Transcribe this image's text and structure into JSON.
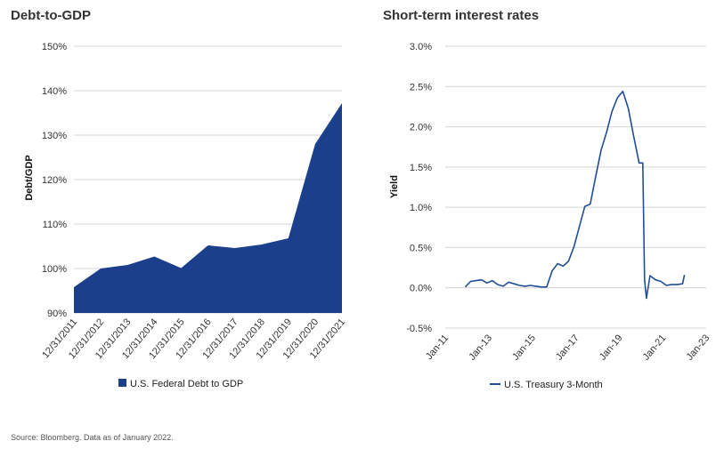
{
  "source_note": "Source: Bloomberg.  Data as of January 2022.",
  "colors": {
    "area": "#1b3f8a",
    "line": "#1f4e96",
    "grid": "#d4d4d4"
  },
  "chart_data": [
    {
      "id": "debt",
      "type": "area",
      "title": "Debt-to-GDP",
      "ylabel": "Debt/GDP",
      "xlabel": "",
      "categories": [
        "12/31/2011",
        "12/31/2012",
        "12/31/2013",
        "12/31/2014",
        "12/31/2015",
        "12/31/2016",
        "12/31/2017",
        "12/31/2018",
        "12/31/2019",
        "12/31/2020",
        "12/31/2021"
      ],
      "series": [
        {
          "name": "U.S. Federal Debt to GDP",
          "values": [
            95.8,
            100.0,
            100.8,
            102.7,
            100.1,
            105.2,
            104.6,
            105.4,
            106.8,
            128.0,
            137.2
          ]
        }
      ],
      "ylim": [
        90,
        150
      ],
      "yticks": [
        90,
        100,
        110,
        120,
        130,
        140,
        150
      ],
      "ytick_labels": [
        "90%",
        "100%",
        "110%",
        "120%",
        "130%",
        "140%",
        "150%"
      ],
      "grid": true,
      "legend": "bottom"
    },
    {
      "id": "rates",
      "type": "line",
      "title": "Short-term interest rates",
      "ylabel": "Yield",
      "xlabel": "",
      "x_tick_labels": [
        "Jan-11",
        "Jan-13",
        "Jan-15",
        "Jan-17",
        "Jan-19",
        "Jan-21",
        "Jan-23"
      ],
      "ylim": [
        -0.5,
        3.0
      ],
      "yticks": [
        -0.5,
        0.0,
        0.5,
        1.0,
        1.5,
        2.0,
        2.5,
        3.0
      ],
      "ytick_labels": [
        "-0.5%",
        "0.0%",
        "0.5%",
        "1.0%",
        "1.5%",
        "2.0%",
        "2.5%",
        "3.0%"
      ],
      "grid": true,
      "legend": "bottom",
      "series": [
        {
          "name": "U.S. Treasury 3-Month",
          "x": [
            "2011-12",
            "2012-03",
            "2012-06",
            "2012-09",
            "2012-12",
            "2013-03",
            "2013-06",
            "2013-09",
            "2013-12",
            "2014-03",
            "2014-06",
            "2014-09",
            "2014-12",
            "2015-03",
            "2015-06",
            "2015-09",
            "2015-12",
            "2016-03",
            "2016-06",
            "2016-09",
            "2016-12",
            "2017-03",
            "2017-06",
            "2017-09",
            "2017-12",
            "2018-03",
            "2018-06",
            "2018-09",
            "2018-12",
            "2019-03",
            "2019-06",
            "2019-09",
            "2019-12",
            "2020-02",
            "2020-03",
            "2020-04",
            "2020-06",
            "2020-09",
            "2020-12",
            "2021-03",
            "2021-06",
            "2021-09",
            "2021-12",
            "2022-01"
          ],
          "values": [
            0.01,
            0.08,
            0.09,
            0.1,
            0.06,
            0.09,
            0.04,
            0.02,
            0.07,
            0.05,
            0.03,
            0.02,
            0.03,
            0.02,
            0.01,
            0.01,
            0.21,
            0.3,
            0.27,
            0.33,
            0.51,
            0.76,
            1.01,
            1.04,
            1.38,
            1.71,
            1.93,
            2.19,
            2.36,
            2.44,
            2.23,
            1.88,
            1.55,
            1.55,
            0.1,
            -0.13,
            0.15,
            0.1,
            0.08,
            0.03,
            0.04,
            0.04,
            0.05,
            0.16
          ]
        }
      ]
    }
  ]
}
